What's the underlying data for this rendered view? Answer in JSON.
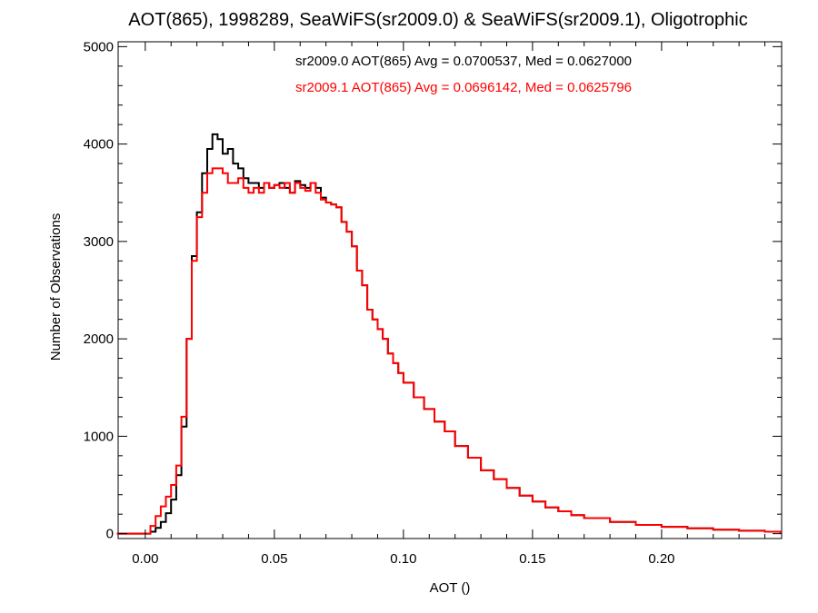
{
  "chart_data": {
    "type": "line",
    "title": "AOT(865), 1998289, SeaWiFS(sr2009.0) & SeaWiFS(sr2009.1), Oligotrophic",
    "xlabel": "AOT ()",
    "ylabel": "Number of Observations",
    "xlim": [
      -0.0105,
      0.2465
    ],
    "ylim": [
      -50,
      5050
    ],
    "x_ticks": [
      0.0,
      0.05,
      0.1,
      0.15,
      0.2
    ],
    "x_tick_labels": [
      "0.00",
      "0.05",
      "0.10",
      "0.15",
      "0.20"
    ],
    "y_ticks": [
      0,
      1000,
      2000,
      3000,
      4000,
      5000
    ],
    "y_tick_labels": [
      "0",
      "1000",
      "2000",
      "3000",
      "4000",
      "5000"
    ],
    "grid": false,
    "legend_placement": "top-center",
    "annotations": [
      {
        "text": "sr2009.0 AOT(865) Avg = 0.0700537, Med = 0.0627000",
        "color": "#000000"
      },
      {
        "text": "sr2009.1 AOT(865) Avg = 0.0696142, Med = 0.0625796",
        "color": "#ff0000"
      }
    ],
    "series": [
      {
        "color": "#000000",
        "x": [
          -0.011,
          0.0,
          0.002,
          0.004,
          0.006,
          0.008,
          0.01,
          0.012,
          0.014,
          0.016,
          0.018,
          0.02,
          0.022,
          0.024,
          0.026,
          0.028,
          0.03,
          0.032,
          0.034,
          0.036,
          0.038,
          0.04,
          0.042,
          0.044,
          0.046,
          0.048,
          0.05,
          0.052,
          0.054,
          0.056,
          0.058,
          0.06,
          0.062,
          0.064,
          0.066,
          0.068,
          0.07,
          0.072,
          0.074,
          0.076,
          0.078,
          0.08,
          0.082,
          0.084,
          0.086,
          0.088,
          0.09,
          0.092,
          0.094,
          0.096,
          0.098,
          0.1,
          0.104,
          0.108,
          0.112,
          0.116,
          0.12,
          0.125,
          0.13,
          0.135,
          0.14,
          0.145,
          0.15,
          0.155,
          0.16,
          0.165,
          0.17,
          0.18,
          0.19,
          0.2,
          0.21,
          0.22,
          0.23,
          0.24,
          0.246
        ],
        "values": [
          0,
          0,
          20,
          60,
          120,
          210,
          350,
          600,
          1100,
          2000,
          2850,
          3300,
          3700,
          3950,
          4100,
          4050,
          3900,
          3950,
          3800,
          3750,
          3650,
          3600,
          3600,
          3550,
          3600,
          3550,
          3580,
          3600,
          3550,
          3500,
          3620,
          3580,
          3550,
          3600,
          3550,
          3450,
          3400,
          3380,
          3350,
          3200,
          3100,
          2950,
          2700,
          2550,
          2300,
          2200,
          2100,
          2000,
          1850,
          1750,
          1650,
          1550,
          1400,
          1280,
          1150,
          1050,
          900,
          780,
          650,
          560,
          470,
          390,
          330,
          270,
          230,
          190,
          160,
          120,
          90,
          70,
          55,
          40,
          30,
          20,
          15
        ]
      },
      {
        "color": "#ff0000",
        "x": [
          -0.011,
          0.0,
          0.002,
          0.004,
          0.006,
          0.008,
          0.01,
          0.012,
          0.014,
          0.016,
          0.018,
          0.02,
          0.022,
          0.024,
          0.026,
          0.028,
          0.03,
          0.032,
          0.034,
          0.036,
          0.038,
          0.04,
          0.042,
          0.044,
          0.046,
          0.048,
          0.05,
          0.052,
          0.054,
          0.056,
          0.058,
          0.06,
          0.062,
          0.064,
          0.066,
          0.068,
          0.07,
          0.072,
          0.074,
          0.076,
          0.078,
          0.08,
          0.082,
          0.084,
          0.086,
          0.088,
          0.09,
          0.092,
          0.094,
          0.096,
          0.098,
          0.1,
          0.104,
          0.108,
          0.112,
          0.116,
          0.12,
          0.125,
          0.13,
          0.135,
          0.14,
          0.145,
          0.15,
          0.155,
          0.16,
          0.165,
          0.17,
          0.18,
          0.19,
          0.2,
          0.21,
          0.22,
          0.23,
          0.24,
          0.246
        ],
        "values": [
          0,
          0,
          80,
          180,
          280,
          380,
          500,
          700,
          1200,
          2000,
          2800,
          3250,
          3500,
          3700,
          3750,
          3750,
          3700,
          3600,
          3600,
          3650,
          3550,
          3500,
          3550,
          3500,
          3600,
          3550,
          3580,
          3550,
          3600,
          3500,
          3600,
          3550,
          3520,
          3600,
          3500,
          3430,
          3400,
          3380,
          3350,
          3200,
          3100,
          2950,
          2700,
          2550,
          2300,
          2200,
          2100,
          2000,
          1850,
          1750,
          1650,
          1550,
          1400,
          1280,
          1150,
          1050,
          900,
          780,
          650,
          560,
          470,
          390,
          330,
          270,
          230,
          190,
          160,
          120,
          90,
          70,
          55,
          40,
          30,
          20,
          15
        ]
      }
    ]
  }
}
